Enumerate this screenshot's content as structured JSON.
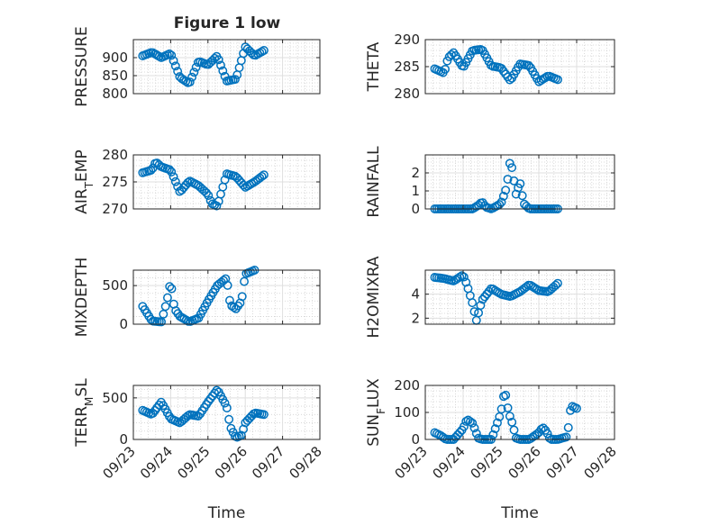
{
  "figure": {
    "title": "Figure 1 low",
    "marker_color": "#0072bd",
    "xlabel": "Time"
  },
  "time_axis": {
    "xlim": [
      "09/23",
      "09/28"
    ],
    "tick_labels": [
      "09/23",
      "09/24",
      "09/25",
      "09/26",
      "09/27",
      "09/28"
    ]
  },
  "chart_data": [
    {
      "type": "scatter",
      "title": "Figure 1 low",
      "ylabel_main": "PRESSURE",
      "ylabel_sub": "",
      "ylabel_tail": "",
      "ylim": [
        800,
        950
      ],
      "yticks": [
        800,
        850,
        900
      ],
      "grid": true,
      "xtick_labels_shown": false,
      "xlabel": "",
      "keyframes": [
        [
          0.25,
          905
        ],
        [
          0.5,
          915
        ],
        [
          0.75,
          900
        ],
        [
          1.0,
          912
        ],
        [
          1.25,
          845
        ],
        [
          1.5,
          828
        ],
        [
          1.75,
          890
        ],
        [
          2.0,
          880
        ],
        [
          2.25,
          905
        ],
        [
          2.5,
          835
        ],
        [
          2.75,
          840
        ],
        [
          3.0,
          930
        ],
        [
          3.25,
          905
        ],
        [
          3.5,
          920
        ]
      ]
    },
    {
      "type": "scatter",
      "title": "",
      "ylabel_main": "THETA",
      "ylabel_sub": "",
      "ylabel_tail": "",
      "ylim": [
        280,
        290
      ],
      "yticks": [
        280,
        285,
        290
      ],
      "grid": true,
      "xtick_labels_shown": false,
      "xlabel": "",
      "keyframes": [
        [
          0.25,
          284.6
        ],
        [
          0.5,
          283.8
        ],
        [
          0.6,
          286.6
        ],
        [
          0.75,
          287.6
        ],
        [
          1.0,
          284.8
        ],
        [
          1.25,
          288.0
        ],
        [
          1.5,
          288.2
        ],
        [
          1.75,
          285.1
        ],
        [
          2.0,
          284.8
        ],
        [
          2.25,
          282.4
        ],
        [
          2.5,
          285.5
        ],
        [
          2.75,
          285.2
        ],
        [
          3.0,
          282.2
        ],
        [
          3.25,
          283.3
        ],
        [
          3.5,
          282.6
        ]
      ]
    },
    {
      "type": "scatter",
      "title": "",
      "ylabel_main": "AIR",
      "ylabel_sub": "T",
      "ylabel_tail": "EMP",
      "ylim": [
        270,
        280
      ],
      "yticks": [
        270,
        275,
        280
      ],
      "grid": true,
      "xtick_labels_shown": false,
      "xlabel": "",
      "keyframes": [
        [
          0.25,
          276.7
        ],
        [
          0.5,
          277.2
        ],
        [
          0.6,
          278.7
        ],
        [
          0.75,
          277.8
        ],
        [
          1.0,
          277.2
        ],
        [
          1.25,
          273.1
        ],
        [
          1.5,
          275.2
        ],
        [
          1.75,
          274.3
        ],
        [
          2.0,
          272.7
        ],
        [
          2.1,
          271.0
        ],
        [
          2.25,
          270.5
        ],
        [
          2.5,
          276.5
        ],
        [
          2.75,
          276.0
        ],
        [
          3.0,
          274.0
        ],
        [
          3.25,
          275.0
        ],
        [
          3.5,
          276.3
        ]
      ]
    },
    {
      "type": "scatter",
      "title": "",
      "ylabel_main": "RAINFALL",
      "ylabel_sub": "",
      "ylabel_tail": "",
      "ylim": [
        0,
        3
      ],
      "yticks": [
        0,
        1,
        2
      ],
      "grid": true,
      "xtick_labels_shown": false,
      "xlabel": "",
      "keyframes": [
        [
          0.25,
          0
        ],
        [
          1.25,
          0
        ],
        [
          1.4,
          0.2
        ],
        [
          1.5,
          0.4
        ],
        [
          1.6,
          0.1
        ],
        [
          1.75,
          0
        ],
        [
          2.0,
          0.3
        ],
        [
          2.15,
          1.2
        ],
        [
          2.25,
          2.8
        ],
        [
          2.4,
          0.8
        ],
        [
          2.5,
          1.5
        ],
        [
          2.6,
          0.3
        ],
        [
          2.75,
          0
        ],
        [
          3.5,
          0
        ]
      ]
    },
    {
      "type": "scatter",
      "title": "",
      "ylabel_main": "MIXDEPTH",
      "ylabel_sub": "",
      "ylabel_tail": "",
      "ylim": [
        0,
        700
      ],
      "yticks": [
        0,
        500
      ],
      "grid": true,
      "xtick_labels_shown": false,
      "xlabel": "",
      "keyframes": [
        [
          0.25,
          230
        ],
        [
          0.5,
          40
        ],
        [
          0.75,
          30
        ],
        [
          0.9,
          300
        ],
        [
          1.0,
          560
        ],
        [
          1.1,
          200
        ],
        [
          1.25,
          100
        ],
        [
          1.5,
          30
        ],
        [
          1.75,
          80
        ],
        [
          2.0,
          300
        ],
        [
          2.25,
          500
        ],
        [
          2.5,
          600
        ],
        [
          2.6,
          250
        ],
        [
          2.75,
          200
        ],
        [
          2.9,
          300
        ],
        [
          3.0,
          650
        ],
        [
          3.25,
          700
        ]
      ]
    },
    {
      "type": "scatter",
      "title": "",
      "ylabel_main": "H2OMIXRA",
      "ylabel_sub": "",
      "ylabel_tail": "",
      "ylim": [
        1.5,
        6
      ],
      "yticks": [
        2,
        4
      ],
      "grid": true,
      "xtick_labels_shown": false,
      "xlabel": "",
      "keyframes": [
        [
          0.25,
          5.4
        ],
        [
          0.5,
          5.3
        ],
        [
          0.75,
          5.1
        ],
        [
          1.0,
          5.6
        ],
        [
          1.1,
          4.8
        ],
        [
          1.25,
          3.2
        ],
        [
          1.35,
          1.8
        ],
        [
          1.5,
          3.5
        ],
        [
          1.75,
          4.5
        ],
        [
          2.0,
          4.0
        ],
        [
          2.25,
          3.8
        ],
        [
          2.5,
          4.2
        ],
        [
          2.75,
          4.8
        ],
        [
          3.0,
          4.3
        ],
        [
          3.25,
          4.2
        ],
        [
          3.5,
          4.9
        ]
      ]
    },
    {
      "type": "scatter",
      "title": "",
      "ylabel_main": "TERR",
      "ylabel_sub": "M",
      "ylabel_tail": "SL",
      "ylim": [
        0,
        650
      ],
      "yticks": [
        0,
        500
      ],
      "grid": true,
      "xtick_labels_shown": true,
      "xlabel": "Time",
      "keyframes": [
        [
          0.25,
          350
        ],
        [
          0.5,
          300
        ],
        [
          0.75,
          450
        ],
        [
          1.0,
          250
        ],
        [
          1.25,
          200
        ],
        [
          1.5,
          300
        ],
        [
          1.75,
          280
        ],
        [
          2.0,
          450
        ],
        [
          2.25,
          600
        ],
        [
          2.5,
          400
        ],
        [
          2.6,
          150
        ],
        [
          2.75,
          20
        ],
        [
          2.9,
          50
        ],
        [
          3.0,
          200
        ],
        [
          3.25,
          320
        ],
        [
          3.5,
          300
        ]
      ]
    },
    {
      "type": "scatter",
      "title": "",
      "ylabel_main": "SUN",
      "ylabel_sub": "F",
      "ylabel_tail": "LUX",
      "ylim": [
        0,
        200
      ],
      "yticks": [
        0,
        100,
        200
      ],
      "grid": true,
      "xtick_labels_shown": true,
      "xlabel": "Time",
      "keyframes": [
        [
          0.25,
          25
        ],
        [
          0.4,
          15
        ],
        [
          0.55,
          0
        ],
        [
          0.75,
          0
        ],
        [
          1.0,
          40
        ],
        [
          1.1,
          75
        ],
        [
          1.25,
          60
        ],
        [
          1.4,
          5
        ],
        [
          1.5,
          0
        ],
        [
          1.75,
          0
        ],
        [
          2.0,
          100
        ],
        [
          2.1,
          185
        ],
        [
          2.2,
          100
        ],
        [
          2.3,
          60
        ],
        [
          2.4,
          5
        ],
        [
          2.5,
          0
        ],
        [
          2.75,
          0
        ],
        [
          3.0,
          25
        ],
        [
          3.1,
          45
        ],
        [
          3.2,
          30
        ],
        [
          3.3,
          0
        ],
        [
          3.5,
          0
        ],
        [
          3.75,
          10
        ],
        [
          3.85,
          125
        ],
        [
          4.0,
          115
        ]
      ]
    }
  ]
}
